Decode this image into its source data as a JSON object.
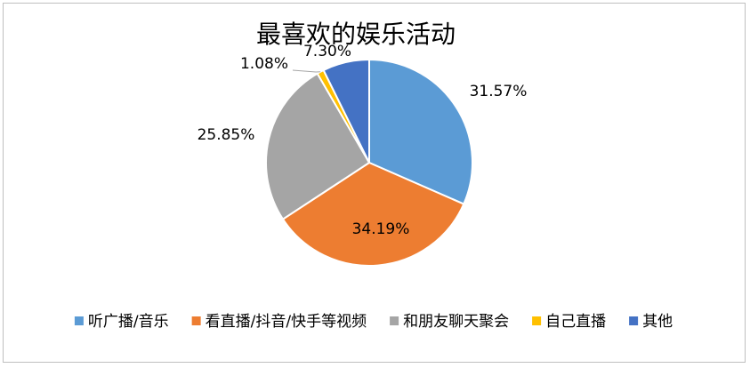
{
  "chart_data": {
    "type": "pie",
    "title": "最喜欢的娱乐活动",
    "categories": [
      "听广播/音乐",
      "看直播/抖音/快手等视频",
      "和朋友聊天聚会",
      "自己直播",
      "其他"
    ],
    "values": [
      31.57,
      34.19,
      25.85,
      1.08,
      7.3
    ],
    "value_labels": [
      "31.57%",
      "34.19%",
      "25.85%",
      "1.08%",
      "7.30%"
    ],
    "colors": [
      "#5b9bd5",
      "#ed7d31",
      "#a5a5a5",
      "#ffc000",
      "#4472c4"
    ],
    "legend": "bottom"
  }
}
